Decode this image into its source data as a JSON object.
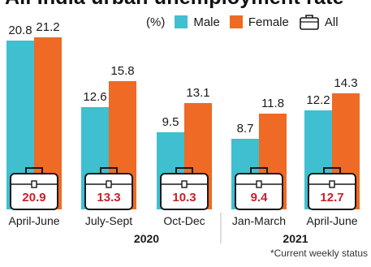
{
  "chart_data": {
    "type": "bar",
    "title": "All India urban unemployment rate",
    "unit": "(%)",
    "categories": [
      "April-June",
      "July-Sept",
      "Oct-Dec",
      "Jan-March",
      "April-June"
    ],
    "years": [
      {
        "label": "2020",
        "spans": [
          1,
          2
        ]
      },
      {
        "label": "2021",
        "spans": [
          3,
          4
        ]
      }
    ],
    "series": [
      {
        "name": "Male",
        "color": "#3fbfd0",
        "values": [
          20.8,
          12.6,
          9.5,
          8.7,
          12.2
        ]
      },
      {
        "name": "Female",
        "color": "#ee6a25",
        "values": [
          21.2,
          15.8,
          13.1,
          11.8,
          14.3
        ]
      }
    ],
    "all": {
      "name": "All",
      "icon": "briefcase-icon",
      "values": [
        20.9,
        13.3,
        10.3,
        9.4,
        12.7
      ],
      "color": "#c8202a"
    },
    "ylim": [
      0,
      21.2
    ],
    "grid": false,
    "legend": "top-right"
  },
  "footnote": "*Current weekly status"
}
